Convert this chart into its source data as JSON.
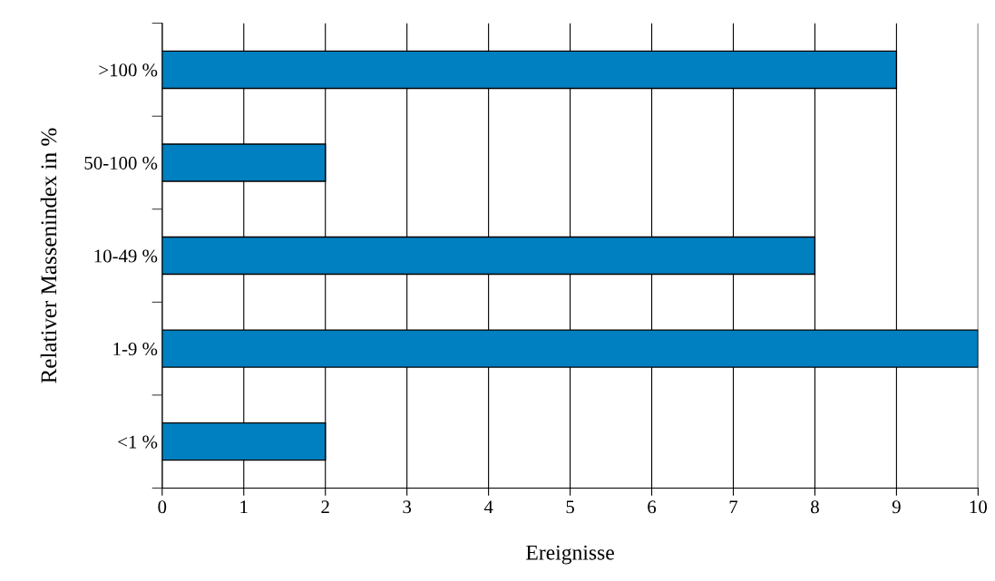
{
  "chart_data": {
    "type": "bar",
    "orientation": "horizontal",
    "xlabel": "Ereignisse",
    "ylabel": "Relativer Massenindex in %",
    "categories": [
      ">100 %",
      "50-100 %",
      "10-49 %",
      "1-9 %",
      "<1 %"
    ],
    "values": [
      9,
      2,
      8,
      10,
      2
    ],
    "color": "#0080c0",
    "xlim": [
      0,
      10
    ],
    "xticks": [
      0,
      1,
      2,
      3,
      4,
      5,
      6,
      7,
      8,
      9,
      10
    ],
    "grid": "x"
  }
}
